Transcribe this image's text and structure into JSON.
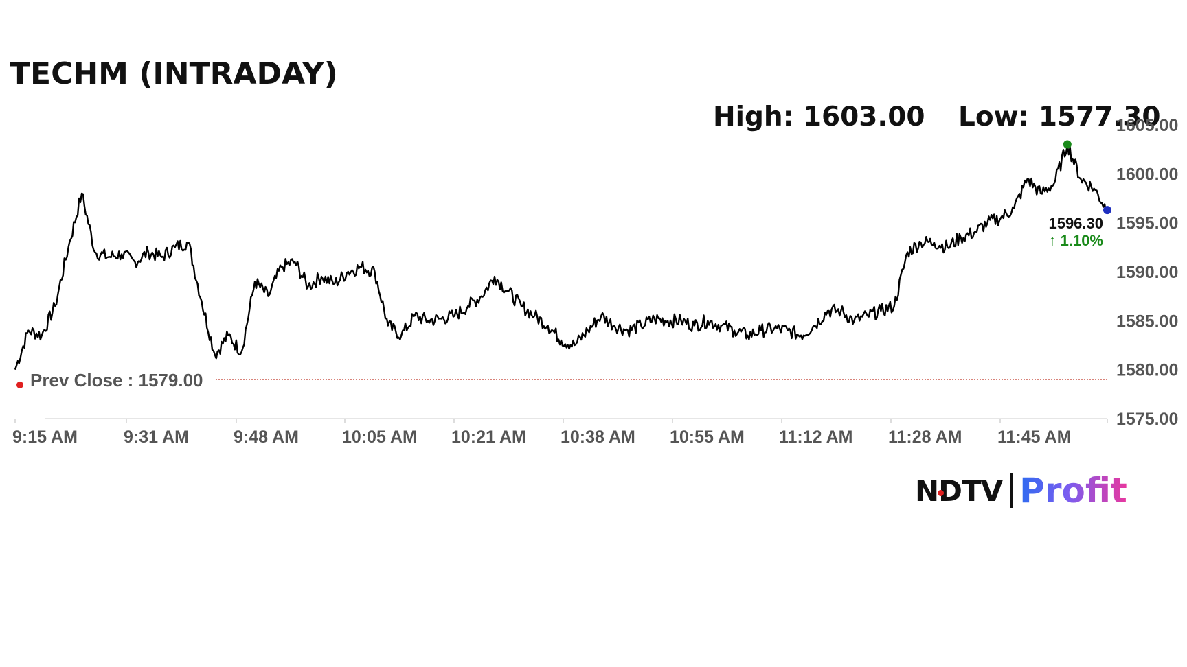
{
  "header": {
    "title": "TECHM (INTRADAY)",
    "high_text": "High: 1603.00",
    "low_text": "Low: 1577.30"
  },
  "logo": {
    "brand": "NDTV",
    "product": "Profit"
  },
  "colors": {
    "line": "#000000",
    "prev_close": "#c0392b",
    "high_marker": "#1a8a1a",
    "last_marker": "#1f2fbf",
    "change_up": "#1a8a1a"
  },
  "chart_data": {
    "type": "line",
    "title": "TECHM (INTRADAY)",
    "xlabel": "",
    "ylabel": "",
    "ylim": [
      1575,
      1605
    ],
    "x_ticks": [
      "9:15 AM",
      "9:31 AM",
      "9:48 AM",
      "10:05 AM",
      "10:21 AM",
      "10:38 AM",
      "10:55 AM",
      "11:12 AM",
      "11:28 AM",
      "11:45 AM"
    ],
    "y_ticks": [
      "1575.00",
      "1580.00",
      "1585.00",
      "1590.00",
      "1595.00",
      "1600.00",
      "1605.00"
    ],
    "high": 1603.0,
    "low": 1577.3,
    "prev_close": 1579.0,
    "prev_close_label": "Prev Close : 1579.00",
    "last_price_label": "1596.30",
    "change_label": "↑ 1.10%",
    "grid": false,
    "series": [
      {
        "x": [
          "9:15 AM",
          "9:17 AM",
          "9:19 AM",
          "9:21 AM",
          "9:23 AM",
          "9:25 AM",
          "9:27 AM",
          "9:29 AM",
          "9:31 AM",
          "9:33 AM",
          "9:35 AM",
          "9:37 AM",
          "9:39 AM",
          "9:41 AM",
          "9:43 AM",
          "9:45 AM",
          "9:47 AM",
          "9:49 AM",
          "9:51 AM",
          "9:53 AM",
          "9:55 AM",
          "9:57 AM",
          "9:59 AM",
          "10:01 AM",
          "10:03 AM",
          "10:05 AM",
          "10:07 AM",
          "10:09 AM",
          "10:11 AM",
          "10:13 AM",
          "10:15 AM",
          "10:17 AM",
          "10:19 AM",
          "10:21 AM",
          "10:23 AM",
          "10:25 AM",
          "10:27 AM",
          "10:29 AM",
          "10:31 AM",
          "10:33 AM",
          "10:35 AM",
          "10:37 AM",
          "10:39 AM",
          "10:41 AM",
          "10:43 AM",
          "10:45 AM",
          "10:47 AM",
          "10:49 AM",
          "10:51 AM",
          "10:53 AM",
          "10:55 AM",
          "10:57 AM",
          "10:59 AM",
          "11:01 AM",
          "11:03 AM",
          "11:05 AM",
          "11:07 AM",
          "11:09 AM",
          "11:11 AM",
          "11:13 AM",
          "11:15 AM",
          "11:17 AM",
          "11:19 AM",
          "11:21 AM",
          "11:23 AM",
          "11:25 AM",
          "11:27 AM",
          "11:29 AM",
          "11:31 AM",
          "11:33 AM",
          "11:35 AM",
          "11:37 AM",
          "11:39 AM",
          "11:41 AM",
          "11:43 AM",
          "11:45 AM",
          "11:47 AM",
          "11:49 AM",
          "11:51 AM",
          "11:53 AM",
          "11:55 AM",
          "11:57 AM",
          "11:59 AM"
        ],
        "values": [
          1580.0,
          1584.0,
          1583.5,
          1586.5,
          1592.5,
          1598.0,
          1592.0,
          1591.5,
          1591.8,
          1591.0,
          1592.0,
          1591.5,
          1592.5,
          1593.0,
          1587.0,
          1581.5,
          1583.5,
          1581.8,
          1589.0,
          1587.5,
          1590.5,
          1591.0,
          1588.5,
          1589.5,
          1588.8,
          1590.0,
          1590.5,
          1590.0,
          1584.5,
          1583.5,
          1585.5,
          1585.0,
          1585.2,
          1585.5,
          1586.5,
          1587.5,
          1589.5,
          1588.0,
          1586.5,
          1585.5,
          1584.5,
          1583.0,
          1582.5,
          1584.0,
          1585.5,
          1584.5,
          1584.0,
          1584.5,
          1585.2,
          1585.0,
          1585.0,
          1584.5,
          1585.0,
          1584.5,
          1584.0,
          1583.5,
          1584.0,
          1584.2,
          1584.0,
          1583.5,
          1584.5,
          1586.0,
          1586.0,
          1585.0,
          1585.5,
          1586.0,
          1586.5,
          1592.0,
          1593.0,
          1593.0,
          1592.5,
          1593.5,
          1594.0,
          1595.0,
          1595.5,
          1596.5,
          1599.5,
          1598.0,
          1599.0,
          1603.0,
          1599.5,
          1598.5,
          1596.3
        ]
      }
    ]
  }
}
